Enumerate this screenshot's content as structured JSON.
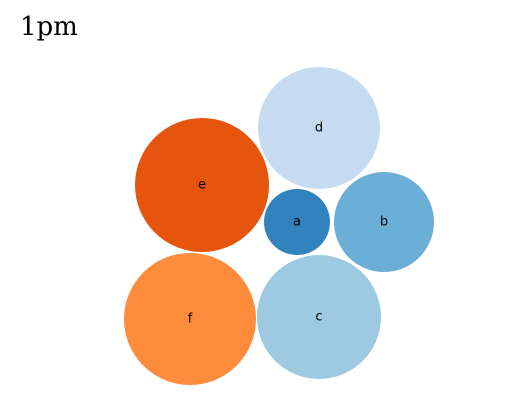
{
  "time_title": "1pm",
  "chart_data": {
    "type": "bubble",
    "title": "1pm",
    "nodes": [
      {
        "name": "a",
        "color": "#3182bd"
      },
      {
        "name": "b",
        "color": "#6baed6"
      },
      {
        "name": "c",
        "color": "#9ecae1"
      },
      {
        "name": "d",
        "color": "#c6dbef"
      },
      {
        "name": "e",
        "color": "#e6550d"
      },
      {
        "name": "f",
        "color": "#fd8d3c"
      }
    ]
  }
}
